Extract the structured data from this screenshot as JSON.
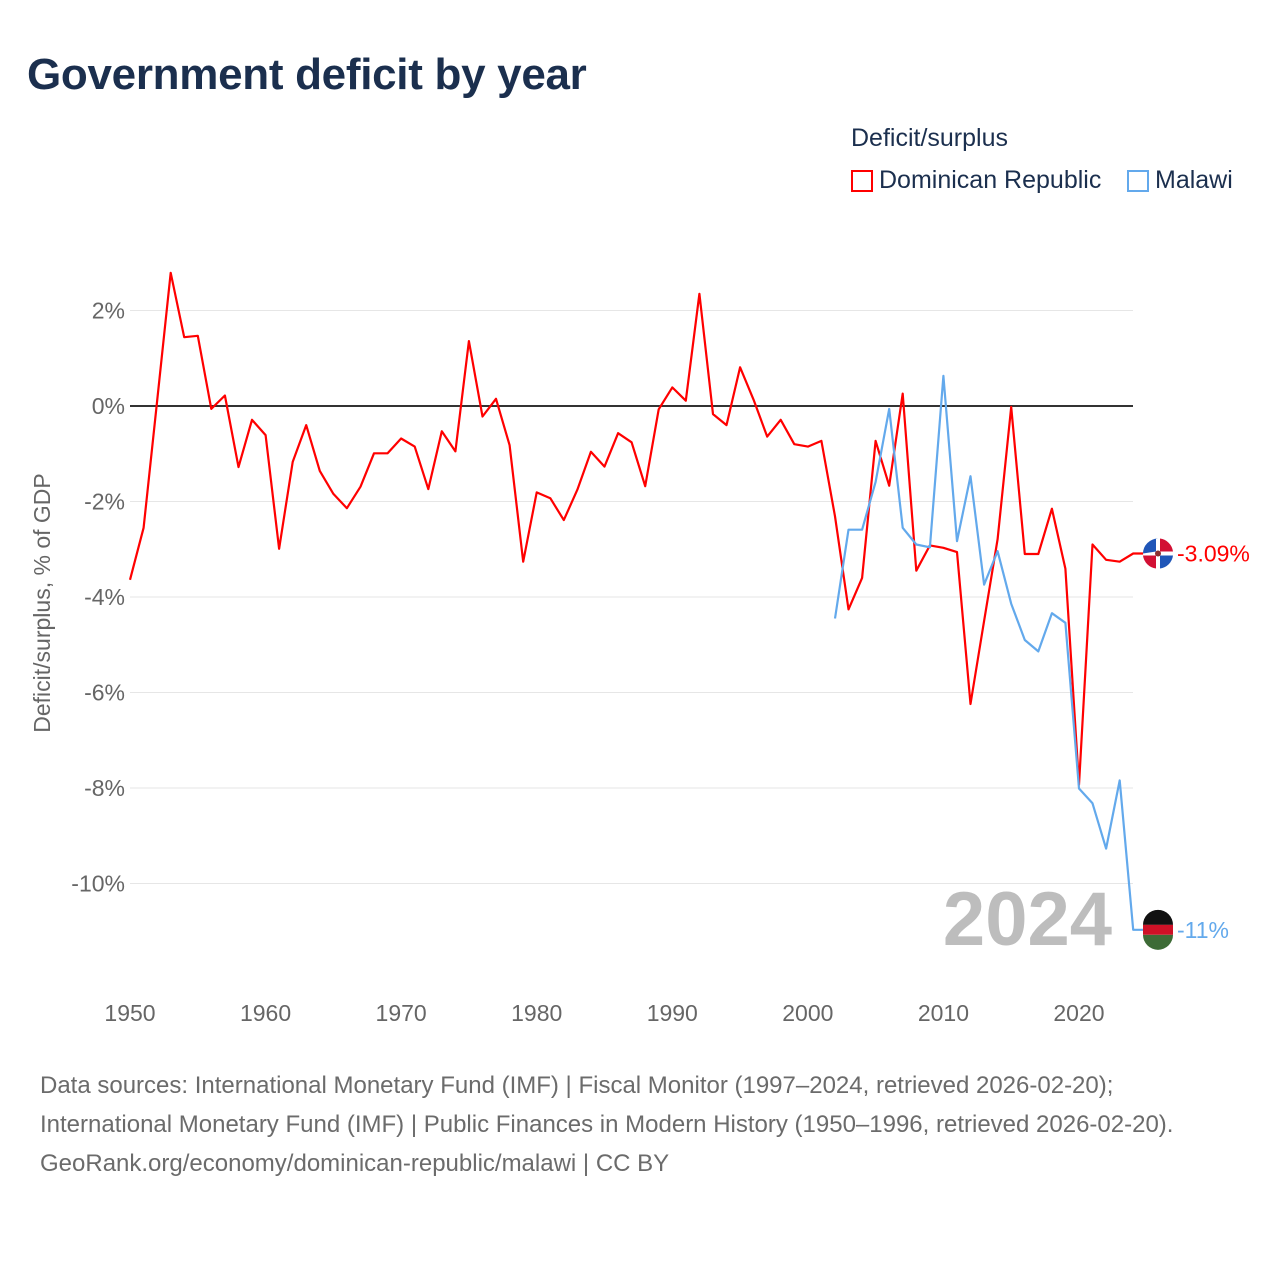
{
  "title": "Government deficit by year",
  "legend": {
    "title": "Deficit/surplus",
    "items": [
      {
        "label": "Dominican Republic",
        "color": "#ff0000"
      },
      {
        "label": "Malawi",
        "color": "#63a9ec"
      }
    ]
  },
  "footer": {
    "sources": "Data sources: International Monetary Fund (IMF) | Fiscal Monitor (1997–2024, retrieved 2026-02-20); International Monetary Fund (IMF) | Public Finances in Modern History (1950–1996, retrieved 2026-02-20).",
    "link": "GeoRank.org/economy/dominican-republic/malawi | CC BY"
  },
  "chart_data": {
    "type": "line",
    "title": "Government deficit by year",
    "xlabel": "",
    "ylabel": "Deficit/surplus, % of GDP",
    "xlim": [
      1950,
      2024
    ],
    "ylim": [
      -11,
      2.8
    ],
    "xticks": [
      1950,
      1960,
      1970,
      1980,
      1990,
      2000,
      2010,
      2020
    ],
    "xtick_labels": [
      "1950",
      "1960",
      "1970",
      "1980",
      "1990",
      "2000",
      "2010",
      "2020"
    ],
    "yticks": [
      2,
      0,
      -2,
      -4,
      -6,
      -8,
      -10
    ],
    "ytick_labels": [
      "2%",
      "0%",
      "-2%",
      "-4%",
      "-6%",
      "-8%",
      "-10%"
    ],
    "grid": true,
    "legend_position": "top-right",
    "year_watermark": "2024",
    "series": [
      {
        "name": "Dominican Republic",
        "color": "#ff0000",
        "end_label": "-3.09%",
        "x": [
          1950,
          1951,
          1952,
          1953,
          1954,
          1955,
          1956,
          1957,
          1958,
          1959,
          1960,
          1961,
          1962,
          1963,
          1964,
          1965,
          1966,
          1967,
          1968,
          1969,
          1970,
          1971,
          1972,
          1973,
          1974,
          1975,
          1976,
          1977,
          1978,
          1979,
          1980,
          1981,
          1982,
          1983,
          1984,
          1985,
          1986,
          1987,
          1988,
          1989,
          1990,
          1991,
          1992,
          1993,
          1994,
          1995,
          1996,
          1997,
          1998,
          1999,
          2000,
          2001,
          2002,
          2003,
          2004,
          2005,
          2006,
          2007,
          2008,
          2009,
          2010,
          2011,
          2012,
          2013,
          2014,
          2015,
          2016,
          2017,
          2018,
          2019,
          2020,
          2021,
          2022,
          2023,
          2024
        ],
        "y": [
          -3.64,
          -2.55,
          0.1,
          2.79,
          1.44,
          1.47,
          -0.06,
          0.22,
          -1.28,
          -0.29,
          -0.61,
          -2.99,
          -1.17,
          -0.4,
          -1.36,
          -1.84,
          -2.14,
          -1.69,
          -0.99,
          -0.99,
          -0.68,
          -0.85,
          -1.74,
          -0.53,
          -0.95,
          1.36,
          -0.22,
          0.15,
          -0.82,
          -3.26,
          -1.81,
          -1.93,
          -2.39,
          -1.75,
          -0.96,
          -1.27,
          -0.57,
          -0.76,
          -1.68,
          -0.07,
          0.39,
          0.11,
          2.35,
          -0.17,
          -0.4,
          0.81,
          0.13,
          -0.64,
          -0.29,
          -0.8,
          -0.85,
          -0.73,
          -2.31,
          -4.26,
          -3.6,
          -0.73,
          -1.67,
          0.26,
          -3.45,
          -2.92,
          -2.97,
          -3.06,
          -6.24,
          -4.5,
          -2.79,
          -0.02,
          -3.1,
          -3.1,
          -2.15,
          -3.41,
          -7.93,
          -2.9,
          -3.22,
          -3.26,
          -3.09
        ]
      },
      {
        "name": "Malawi",
        "color": "#63a9ec",
        "end_label": "-11%",
        "x": [
          2002,
          2003,
          2004,
          2005,
          2006,
          2007,
          2008,
          2009,
          2010,
          2011,
          2012,
          2013,
          2014,
          2015,
          2016,
          2017,
          2018,
          2019,
          2020,
          2021,
          2022,
          2023,
          2024
        ],
        "y": [
          -4.45,
          -2.59,
          -2.59,
          -1.59,
          -0.06,
          -2.55,
          -2.9,
          -2.96,
          0.63,
          -2.83,
          -1.47,
          -3.74,
          -3.04,
          -4.14,
          -4.9,
          -5.14,
          -4.34,
          -4.54,
          -8.01,
          -8.32,
          -9.27,
          -7.84,
          -10.97
        ]
      }
    ]
  }
}
